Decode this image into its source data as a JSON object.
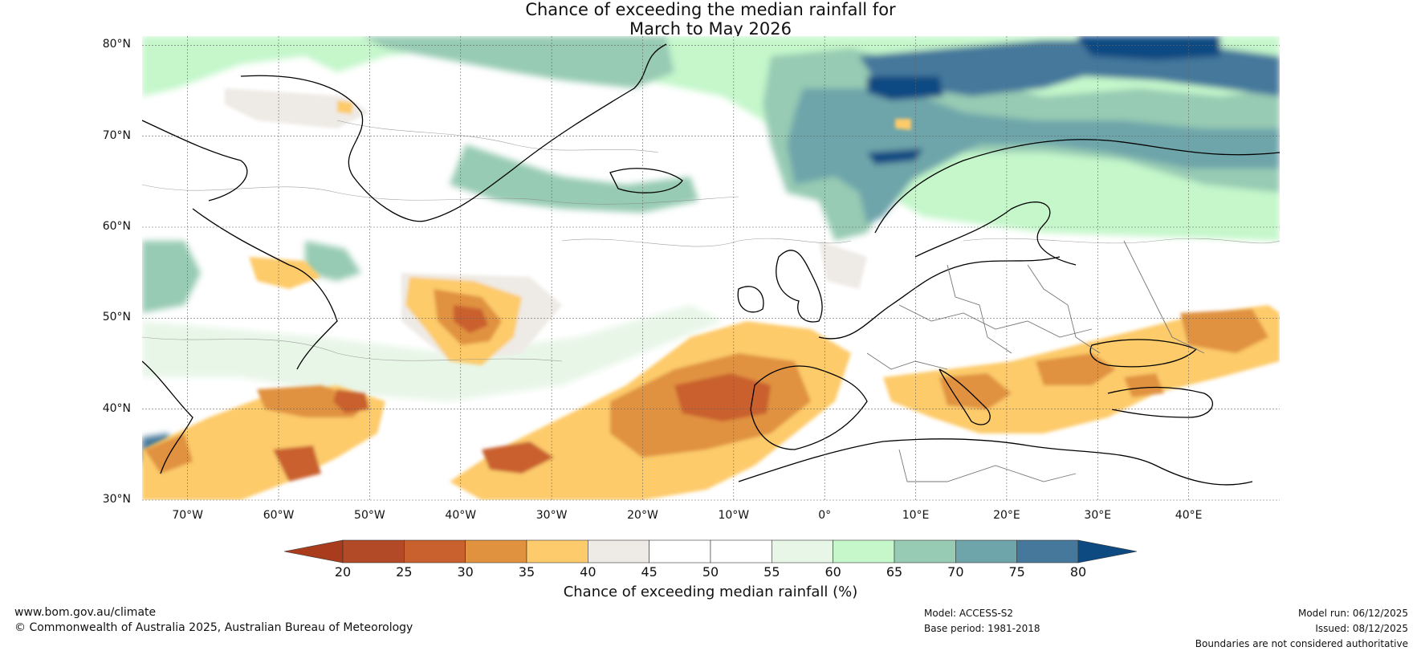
{
  "title": {
    "line1": "Chance of exceeding the median rainfall for",
    "line2": "March to May 2026"
  },
  "map": {
    "region": "North Atlantic and Europe",
    "lon_range": [
      -75,
      50
    ],
    "lat_range": [
      30,
      81
    ],
    "lat_labels": [
      "80°N",
      "70°N",
      "60°N",
      "50°N",
      "40°N",
      "30°N"
    ],
    "lon_labels": [
      "70°W",
      "60°W",
      "50°W",
      "40°W",
      "30°W",
      "20°W",
      "10°W",
      "0°",
      "10°E",
      "20°E",
      "30°E",
      "40°E"
    ]
  },
  "colorbar": {
    "ticks": [
      "20",
      "25",
      "30",
      "35",
      "40",
      "45",
      "50",
      "55",
      "60",
      "65",
      "70",
      "75",
      "80"
    ],
    "colors": [
      "#a83c1d",
      "#b34a27",
      "#c9612e",
      "#e0923f",
      "#fdcb6b",
      "#eeeae5",
      "#ffffff",
      "#ffffff",
      "#e8f6e8",
      "#c5f7cb",
      "#97cbb3",
      "#6ea5aa",
      "#45789b",
      "#0e4a82"
    ],
    "label": "Chance of exceeding median rainfall (%)"
  },
  "footer": {
    "website": "www.bom.gov.au/climate",
    "copyright": "© Commonwealth of Australia 2025, Australian Bureau of Meteorology",
    "model": "Model: ACCESS-S2",
    "base_period": "Base period: 1981-2018",
    "model_run": "Model run: 06/12/2025",
    "issued": "Issued: 08/12/2025",
    "disclaimer": "Boundaries are not considered authoritative"
  }
}
